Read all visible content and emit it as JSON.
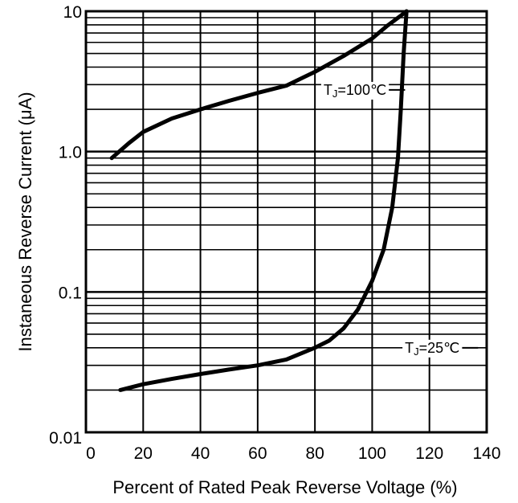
{
  "chart_data": {
    "type": "line",
    "title": "",
    "xlabel": "Percent of Rated Peak Reverse Voltage (%)",
    "ylabel": "Instaneous Reverse Current (μA)",
    "x_scale": "linear",
    "y_scale": "log",
    "xlim": [
      0,
      140
    ],
    "ylim": [
      0.01,
      10
    ],
    "x_ticks": [
      0,
      20,
      40,
      60,
      80,
      100,
      120,
      140
    ],
    "x_tick_labels": [
      "0",
      "20",
      "40",
      "60",
      "80",
      "100",
      "120",
      "140"
    ],
    "y_ticks": [
      0.01,
      0.1,
      1.0,
      10
    ],
    "y_tick_labels": [
      "0.01",
      "0.1",
      "1.0",
      "10"
    ],
    "grid": true,
    "series": [
      {
        "name": "TJ=100℃",
        "label_prefix": "T",
        "label_sub": "J",
        "label_suffix": "=100℃",
        "x": [
          9,
          15,
          20,
          30,
          40,
          50,
          60,
          70,
          80,
          90,
          100,
          105,
          110,
          112
        ],
        "y": [
          0.9,
          1.15,
          1.38,
          1.72,
          2.0,
          2.3,
          2.62,
          2.95,
          3.7,
          4.8,
          6.4,
          7.8,
          9.3,
          10
        ]
      },
      {
        "name": "TJ=25℃",
        "label_prefix": "T",
        "label_sub": "J",
        "label_suffix": "=25℃",
        "x": [
          12,
          20,
          30,
          40,
          50,
          60,
          70,
          80,
          85,
          90,
          95,
          100,
          104,
          107,
          109,
          110,
          111,
          112
        ],
        "y": [
          0.02,
          0.022,
          0.024,
          0.026,
          0.028,
          0.03,
          0.033,
          0.04,
          0.045,
          0.055,
          0.075,
          0.12,
          0.2,
          0.4,
          0.9,
          2,
          5,
          10
        ]
      }
    ]
  }
}
